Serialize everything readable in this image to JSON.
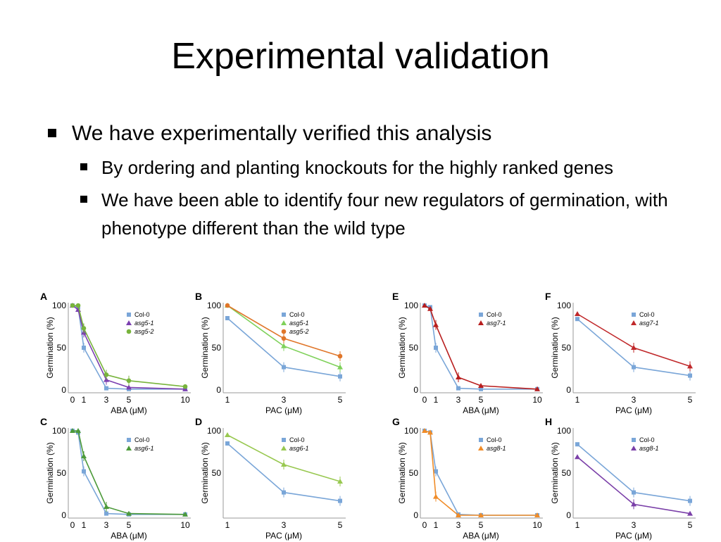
{
  "slide": {
    "title": "Experimental validation",
    "bullet1": "We have experimentally verified this analysis",
    "sub_bullets": [
      "By ordering and planting knockouts for the highly ranked genes",
      "We have been able to identify four new regulators of germination, with phenotype different than the wild type"
    ]
  },
  "chart_data": [
    {
      "panel": "A",
      "type": "line",
      "xlabel": "ABA (μM)",
      "ylabel": "Germination (%)",
      "x": [
        0,
        0.5,
        1,
        3,
        5,
        10
      ],
      "xticks": [
        0,
        1,
        3,
        5,
        10
      ],
      "ylim": [
        0,
        100
      ],
      "yticks": [
        0,
        50,
        100
      ],
      "series": [
        {
          "name": "Col-0",
          "color": "#7aa6d8",
          "values": [
            100,
            98,
            50,
            2,
            1,
            1
          ]
        },
        {
          "name": "asg5-1",
          "color": "#7b3fb0",
          "values": [
            100,
            95,
            68,
            12,
            3,
            1
          ]
        },
        {
          "name": "asg5-2",
          "color": "#78b43c",
          "values": [
            100,
            100,
            73,
            18,
            11,
            4
          ]
        }
      ]
    },
    {
      "panel": "B",
      "type": "line",
      "xlabel": "PAC (μM)",
      "ylabel": "Germination (%)",
      "x": [
        1,
        3,
        5
      ],
      "xticks": [
        1,
        3,
        5
      ],
      "ylim": [
        0,
        100
      ],
      "yticks": [
        0,
        50,
        100
      ],
      "series": [
        {
          "name": "Col-0",
          "color": "#7aa6d8",
          "values": [
            85,
            27,
            16
          ]
        },
        {
          "name": "asg5-1",
          "color": "#7fd15a",
          "values": [
            100,
            52,
            27
          ]
        },
        {
          "name": "asg5-2",
          "color": "#e0762a",
          "values": [
            100,
            61,
            40
          ]
        }
      ]
    },
    {
      "panel": "C",
      "type": "line",
      "xlabel": "ABA (μM)",
      "ylabel": "Germination (%)",
      "x": [
        0,
        0.5,
        1,
        3,
        5,
        10
      ],
      "xticks": [
        0,
        1,
        3,
        5,
        10
      ],
      "ylim": [
        0,
        100
      ],
      "yticks": [
        0,
        50,
        100
      ],
      "series": [
        {
          "name": "Col-0",
          "color": "#7aa6d8",
          "values": [
            100,
            98,
            52,
            2,
            1,
            1
          ]
        },
        {
          "name": "asg6-1",
          "color": "#4c9a3a",
          "values": [
            100,
            100,
            70,
            10,
            2,
            1
          ]
        }
      ]
    },
    {
      "panel": "D",
      "type": "line",
      "xlabel": "PAC (μM)",
      "ylabel": "Germination (%)",
      "x": [
        1,
        3,
        5
      ],
      "xticks": [
        1,
        3,
        5
      ],
      "ylim": [
        0,
        100
      ],
      "yticks": [
        50,
        100
      ],
      "series": [
        {
          "name": "Col-0",
          "color": "#7aa6d8",
          "values": [
            85,
            27,
            17
          ]
        },
        {
          "name": "asg6-1",
          "color": "#98c850",
          "values": [
            95,
            60,
            40
          ]
        }
      ]
    },
    {
      "panel": "E",
      "type": "line",
      "xlabel": "ABA (μM)",
      "ylabel": "Germination (%)",
      "x": [
        0,
        0.5,
        1,
        3,
        5,
        10
      ],
      "xticks": [
        0,
        1,
        3,
        5,
        10
      ],
      "ylim": [
        0,
        100
      ],
      "yticks": [
        0,
        50,
        100
      ],
      "series": [
        {
          "name": "Col-0",
          "color": "#7aa6d8",
          "values": [
            100,
            98,
            50,
            2,
            1,
            1
          ]
        },
        {
          "name": "asg7-1",
          "color": "#b81e1e",
          "values": [
            100,
            96,
            77,
            15,
            5,
            1
          ]
        }
      ]
    },
    {
      "panel": "F",
      "type": "line",
      "xlabel": "PAC (μM)",
      "ylabel": "Germination (%)",
      "x": [
        1,
        3,
        5
      ],
      "xticks": [
        1,
        3,
        5
      ],
      "ylim": [
        0,
        100
      ],
      "yticks": [
        0,
        50,
        100
      ],
      "series": [
        {
          "name": "Col-0",
          "color": "#7aa6d8",
          "values": [
            84,
            27,
            17
          ]
        },
        {
          "name": "asg7-1",
          "color": "#c0282a",
          "values": [
            90,
            50,
            28
          ]
        }
      ]
    },
    {
      "panel": "G",
      "type": "line",
      "xlabel": "ABA (μM)",
      "ylabel": "Germination (%)",
      "x": [
        0,
        0.5,
        1,
        3,
        5,
        10
      ],
      "xticks": [
        0,
        1,
        3,
        5,
        10
      ],
      "ylim": [
        0,
        100
      ],
      "yticks": [
        0,
        50,
        100
      ],
      "series": [
        {
          "name": "Col-0",
          "color": "#7aa6d8",
          "values": [
            100,
            98,
            52,
            1,
            0,
            0
          ]
        },
        {
          "name": "asg8-1",
          "color": "#f08c28",
          "values": [
            100,
            98,
            22,
            0,
            0,
            0
          ]
        }
      ]
    },
    {
      "panel": "H",
      "type": "line",
      "xlabel": "PAC (μM)",
      "ylabel": "Germination (%)",
      "x": [
        1,
        3,
        5
      ],
      "xticks": [
        1,
        3,
        5
      ],
      "ylim": [
        0,
        100
      ],
      "yticks": [
        0,
        50,
        100
      ],
      "series": [
        {
          "name": "Col-0",
          "color": "#7aa6d8",
          "values": [
            84,
            27,
            17
          ]
        },
        {
          "name": "asg8-1",
          "color": "#7a3fa8",
          "values": [
            69,
            13,
            2
          ]
        }
      ]
    }
  ]
}
